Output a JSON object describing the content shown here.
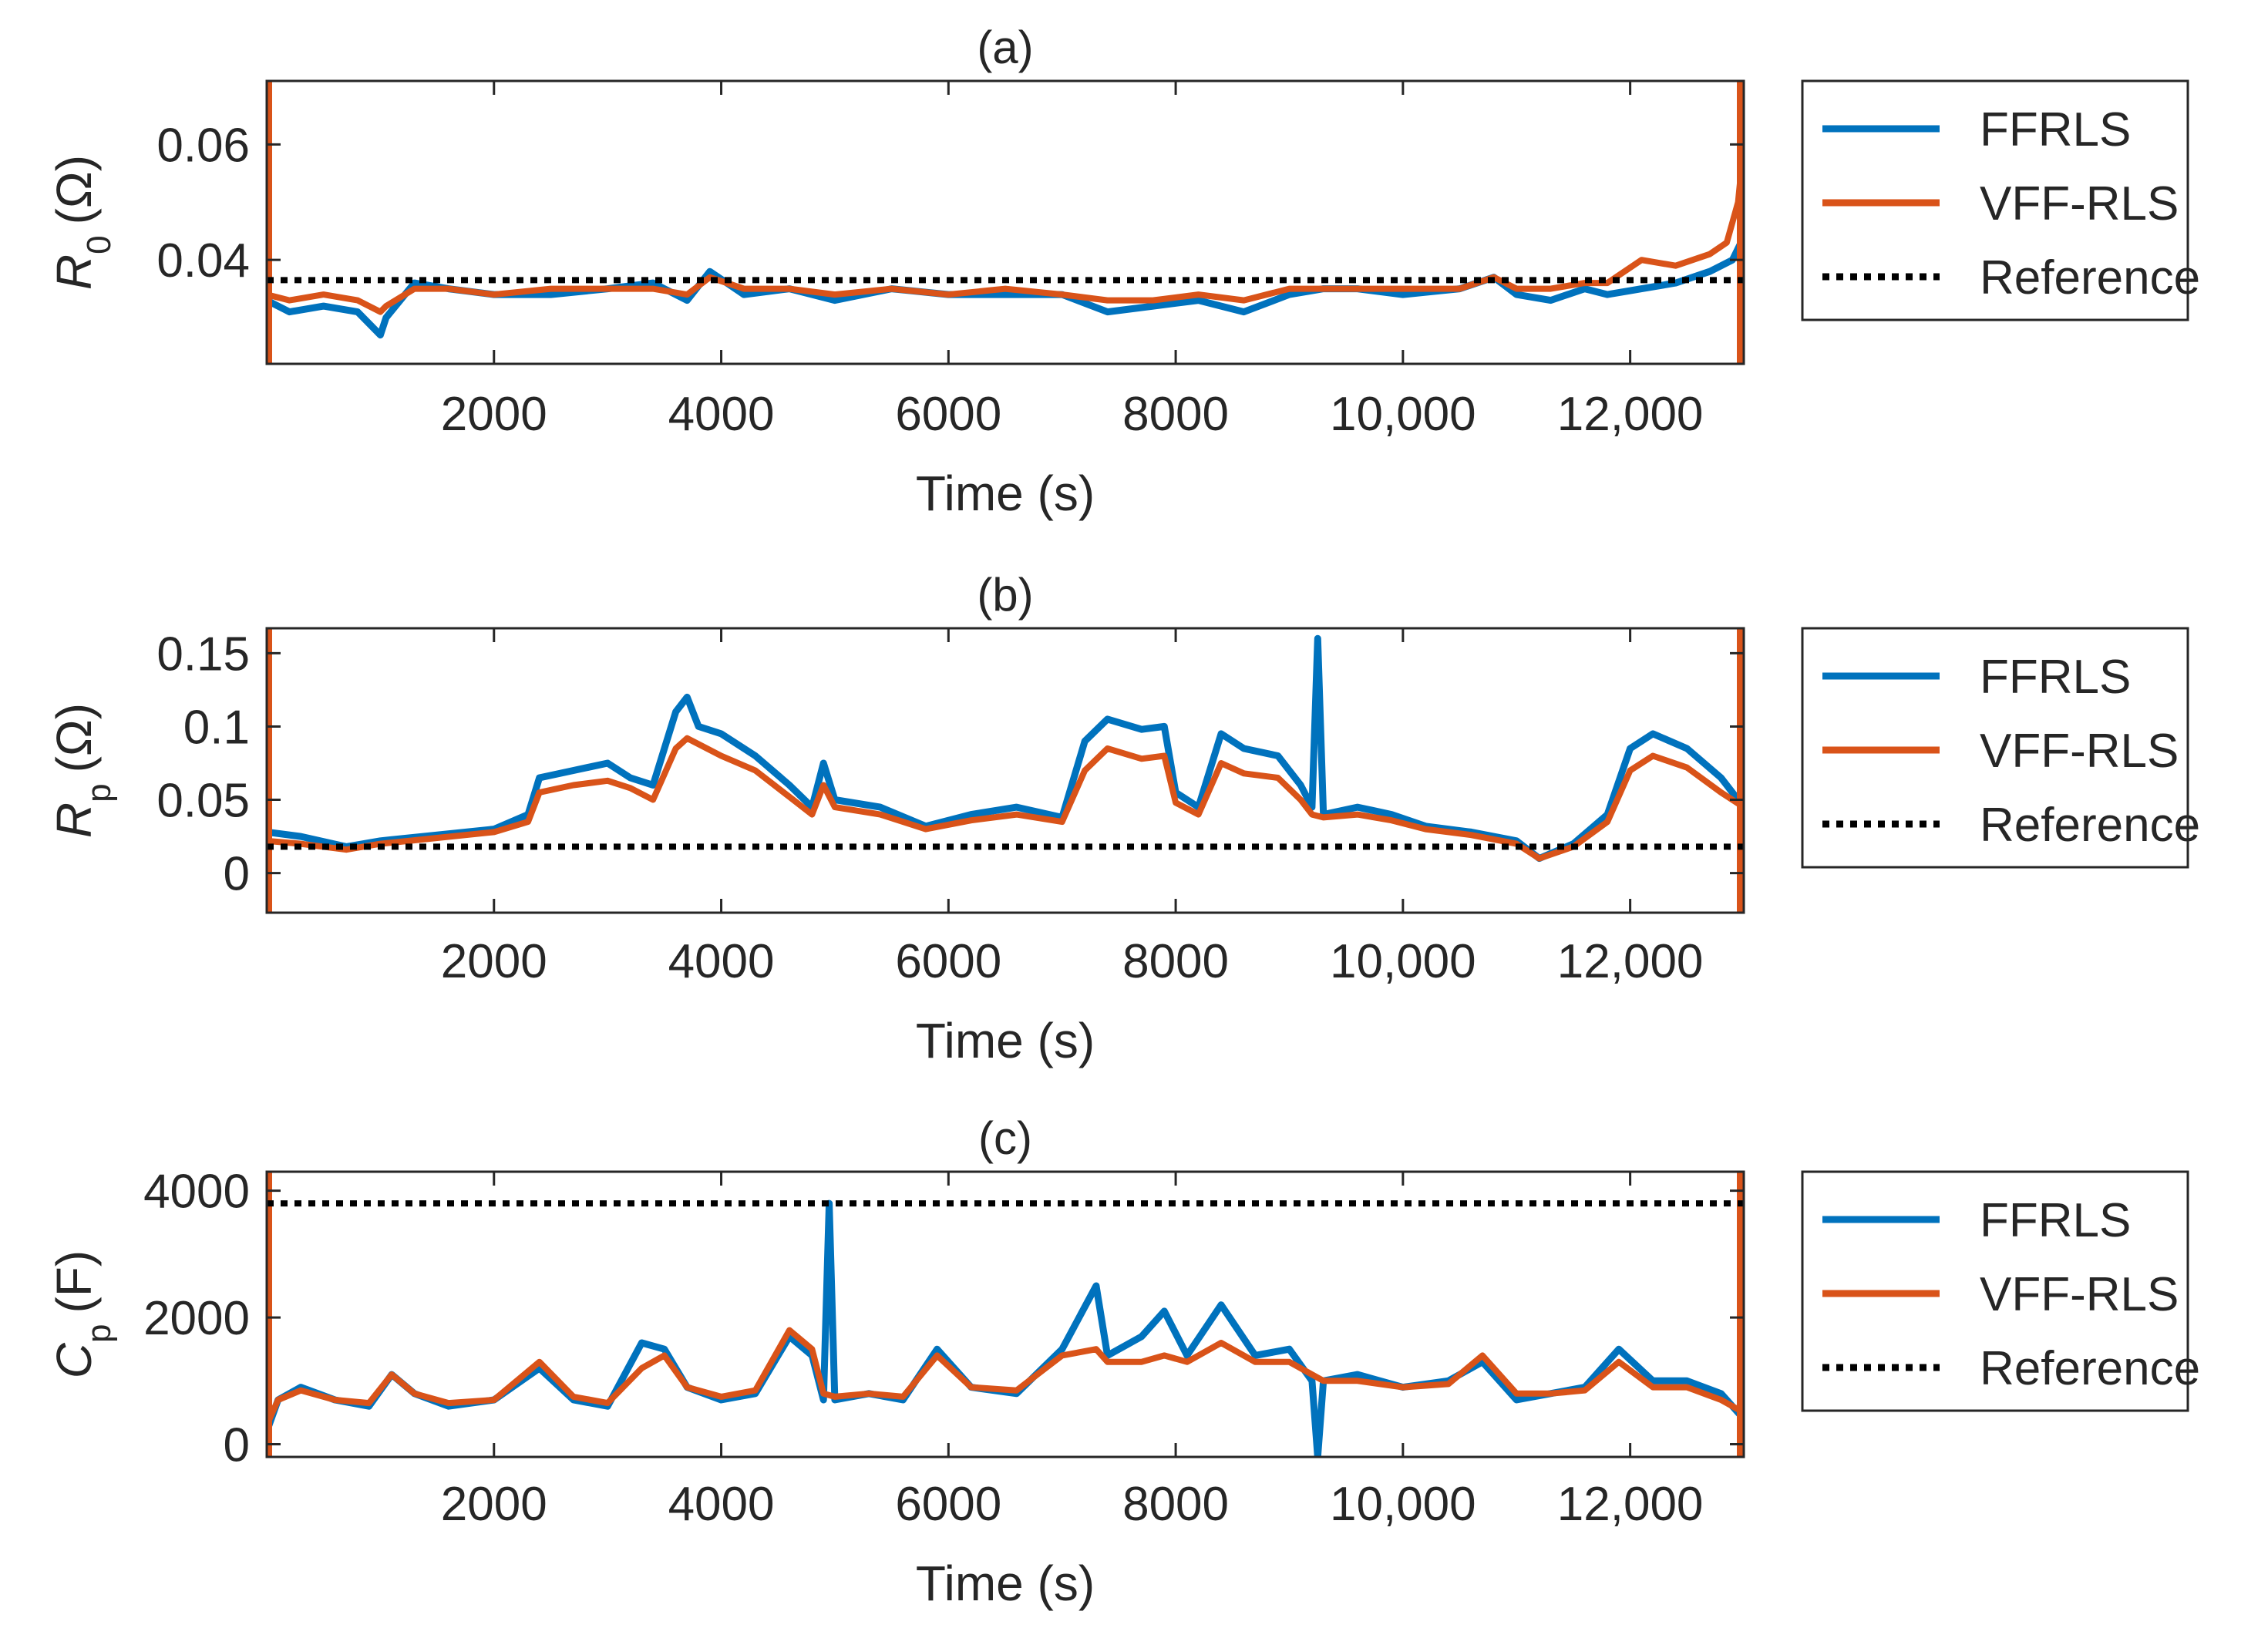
{
  "chart_data": [
    {
      "type": "line",
      "panel": "(a)",
      "title": "(a)",
      "xlabel": "Time (s)",
      "ylabel": {
        "main": "R",
        "sub": "0",
        "unit": "(Ω)"
      },
      "xlim": [
        0,
        13000
      ],
      "ylim": [
        0.022,
        0.071
      ],
      "xticks": [
        2000,
        4000,
        6000,
        8000,
        10000,
        12000
      ],
      "xtick_labels": [
        "2000",
        "4000",
        "6000",
        "8000",
        "10,000",
        "12,000"
      ],
      "yticks": [
        0.04,
        0.06
      ],
      "ytick_labels": [
        "0.04",
        "0.06"
      ],
      "reference": 0.0365,
      "series": [
        {
          "name": "FFRLS",
          "color": "#0072BD",
          "x": [
            0,
            200,
            500,
            800,
            1000,
            1050,
            1300,
            1600,
            2000,
            2500,
            3000,
            3400,
            3700,
            3900,
            4200,
            4600,
            5000,
            5500,
            6000,
            6500,
            7000,
            7400,
            7800,
            8200,
            8600,
            9000,
            9300,
            9600,
            10000,
            10500,
            10800,
            11000,
            11300,
            11600,
            11800,
            12100,
            12400,
            12700,
            12900,
            13000
          ],
          "y": [
            0.033,
            0.031,
            0.032,
            0.031,
            0.027,
            0.03,
            0.036,
            0.035,
            0.034,
            0.034,
            0.035,
            0.036,
            0.033,
            0.038,
            0.034,
            0.035,
            0.033,
            0.035,
            0.034,
            0.034,
            0.034,
            0.031,
            0.032,
            0.033,
            0.031,
            0.034,
            0.035,
            0.035,
            0.034,
            0.035,
            0.037,
            0.034,
            0.033,
            0.035,
            0.034,
            0.035,
            0.036,
            0.038,
            0.04,
            0.044
          ]
        },
        {
          "name": "VFF-RLS",
          "color": "#D95319",
          "x": [
            0,
            200,
            500,
            800,
            1000,
            1050,
            1300,
            1600,
            2000,
            2500,
            3000,
            3400,
            3700,
            3900,
            4200,
            4600,
            5000,
            5500,
            6000,
            6500,
            7000,
            7400,
            7800,
            8200,
            8600,
            9000,
            9300,
            9600,
            10000,
            10500,
            10800,
            11000,
            11300,
            11600,
            11800,
            12100,
            12400,
            12700,
            12850,
            12950,
            13000
          ],
          "y": [
            0.034,
            0.033,
            0.034,
            0.033,
            0.031,
            0.032,
            0.035,
            0.035,
            0.034,
            0.035,
            0.035,
            0.035,
            0.034,
            0.037,
            0.035,
            0.035,
            0.034,
            0.035,
            0.034,
            0.035,
            0.034,
            0.033,
            0.033,
            0.034,
            0.033,
            0.035,
            0.035,
            0.035,
            0.035,
            0.035,
            0.037,
            0.035,
            0.035,
            0.036,
            0.036,
            0.04,
            0.039,
            0.041,
            0.043,
            0.05,
            0.06
          ]
        }
      ]
    },
    {
      "type": "line",
      "panel": "(b)",
      "title": "(b)",
      "xlabel": "Time (s)",
      "ylabel": {
        "main": "R",
        "sub": "p",
        "unit": "(Ω)"
      },
      "xlim": [
        0,
        13000
      ],
      "ylim": [
        -0.027,
        0.167
      ],
      "xticks": [
        2000,
        4000,
        6000,
        8000,
        10000,
        12000
      ],
      "xtick_labels": [
        "2000",
        "4000",
        "6000",
        "8000",
        "10,000",
        "12,000"
      ],
      "yticks": [
        0,
        0.05,
        0.1,
        0.15
      ],
      "ytick_labels": [
        "0",
        "0.05",
        "0.1",
        "0.15"
      ],
      "reference": 0.018,
      "series": [
        {
          "name": "FFRLS",
          "color": "#0072BD",
          "x": [
            0,
            300,
            700,
            1000,
            1500,
            2000,
            2300,
            2400,
            2700,
            3000,
            3200,
            3400,
            3600,
            3700,
            3800,
            4000,
            4300,
            4600,
            4800,
            4900,
            5000,
            5400,
            5800,
            6200,
            6600,
            7000,
            7200,
            7400,
            7700,
            7900,
            8000,
            8200,
            8400,
            8600,
            8900,
            9100,
            9200,
            9250,
            9300,
            9600,
            9900,
            10200,
            10600,
            11000,
            11200,
            11500,
            11800,
            12000,
            12200,
            12500,
            12800,
            13000
          ],
          "y": [
            0.028,
            0.025,
            0.018,
            0.022,
            0.026,
            0.03,
            0.04,
            0.065,
            0.07,
            0.075,
            0.065,
            0.06,
            0.11,
            0.12,
            0.1,
            0.095,
            0.08,
            0.06,
            0.045,
            0.075,
            0.05,
            0.045,
            0.032,
            0.04,
            0.045,
            0.038,
            0.09,
            0.105,
            0.098,
            0.1,
            0.055,
            0.045,
            0.095,
            0.085,
            0.08,
            0.06,
            0.045,
            0.16,
            0.04,
            0.045,
            0.04,
            0.032,
            0.028,
            0.022,
            0.01,
            0.02,
            0.04,
            0.085,
            0.095,
            0.085,
            0.065,
            0.045
          ]
        },
        {
          "name": "VFF-RLS",
          "color": "#D95319",
          "x": [
            0,
            300,
            700,
            1000,
            1500,
            2000,
            2300,
            2400,
            2700,
            3000,
            3200,
            3400,
            3600,
            3700,
            3800,
            4000,
            4300,
            4600,
            4800,
            4900,
            5000,
            5400,
            5800,
            6200,
            6600,
            7000,
            7200,
            7400,
            7700,
            7900,
            8000,
            8200,
            8400,
            8600,
            8900,
            9100,
            9200,
            9300,
            9600,
            9900,
            10200,
            10600,
            11000,
            11200,
            11500,
            11800,
            12000,
            12200,
            12500,
            12800,
            13000
          ],
          "y": [
            0.022,
            0.02,
            0.016,
            0.02,
            0.024,
            0.028,
            0.035,
            0.055,
            0.06,
            0.063,
            0.058,
            0.05,
            0.085,
            0.092,
            0.088,
            0.08,
            0.07,
            0.052,
            0.04,
            0.06,
            0.045,
            0.04,
            0.03,
            0.036,
            0.04,
            0.035,
            0.07,
            0.085,
            0.078,
            0.08,
            0.048,
            0.04,
            0.075,
            0.068,
            0.065,
            0.05,
            0.04,
            0.038,
            0.04,
            0.036,
            0.03,
            0.026,
            0.02,
            0.01,
            0.018,
            0.035,
            0.07,
            0.08,
            0.072,
            0.055,
            0.045
          ]
        }
      ]
    },
    {
      "type": "line",
      "panel": "(c)",
      "title": "(c)",
      "xlabel": "Time (s)",
      "ylabel": {
        "main": "C",
        "sub": "p",
        "unit": "(F)"
      },
      "xlim": [
        0,
        13000
      ],
      "ylim": [
        -200,
        4300
      ],
      "xticks": [
        2000,
        4000,
        6000,
        8000,
        10000,
        12000
      ],
      "xtick_labels": [
        "2000",
        "4000",
        "6000",
        "8000",
        "10,000",
        "12,000"
      ],
      "yticks": [
        0,
        2000,
        4000
      ],
      "ytick_labels": [
        "0",
        "2000",
        "4000"
      ],
      "reference": 3800,
      "series": [
        {
          "name": "FFRLS",
          "color": "#0072BD",
          "x": [
            0,
            100,
            300,
            600,
            900,
            1100,
            1300,
            1600,
            2000,
            2400,
            2700,
            3000,
            3300,
            3500,
            3700,
            4000,
            4300,
            4600,
            4800,
            4900,
            4950,
            5000,
            5300,
            5600,
            5900,
            6200,
            6600,
            7000,
            7300,
            7400,
            7700,
            7900,
            8100,
            8400,
            8700,
            9000,
            9200,
            9250,
            9300,
            9600,
            10000,
            10400,
            10700,
            11000,
            11300,
            11600,
            11900,
            12200,
            12500,
            12800,
            13000
          ],
          "y": [
            200,
            700,
            900,
            700,
            600,
            1100,
            800,
            600,
            700,
            1200,
            700,
            600,
            1600,
            1500,
            900,
            700,
            800,
            1700,
            1400,
            700,
            3800,
            700,
            800,
            700,
            1500,
            900,
            800,
            1500,
            2500,
            1400,
            1700,
            2100,
            1400,
            2200,
            1400,
            1500,
            1000,
            -200,
            1000,
            1100,
            900,
            1000,
            1300,
            700,
            800,
            900,
            1500,
            1000,
            1000,
            800,
            400
          ]
        },
        {
          "name": "VFF-RLS",
          "color": "#D95319",
          "x": [
            0,
            100,
            300,
            600,
            900,
            1100,
            1300,
            1600,
            2000,
            2400,
            2700,
            3000,
            3300,
            3500,
            3700,
            4000,
            4300,
            4600,
            4800,
            4900,
            5000,
            5300,
            5600,
            5900,
            6200,
            6600,
            7000,
            7300,
            7400,
            7700,
            7900,
            8100,
            8400,
            8700,
            9000,
            9200,
            9300,
            9600,
            10000,
            10400,
            10700,
            11000,
            11300,
            11600,
            11900,
            12200,
            12500,
            12800,
            13000
          ],
          "y": [
            300,
            700,
            850,
            700,
            650,
            1100,
            800,
            650,
            700,
            1300,
            750,
            650,
            1200,
            1400,
            900,
            750,
            850,
            1800,
            1500,
            800,
            750,
            800,
            750,
            1400,
            900,
            850,
            1400,
            1500,
            1300,
            1300,
            1400,
            1300,
            1600,
            1300,
            1300,
            1100,
            1000,
            1000,
            900,
            950,
            1400,
            800,
            800,
            850,
            1300,
            900,
            900,
            700,
            500
          ]
        }
      ]
    }
  ],
  "legend": {
    "entries": [
      {
        "label": "FFRLS",
        "style": "solid",
        "color": "#0072BD"
      },
      {
        "label": "VFF-RLS",
        "style": "solid",
        "color": "#D95319"
      },
      {
        "label": "Reference",
        "style": "dotted",
        "color": "#000000"
      }
    ]
  }
}
